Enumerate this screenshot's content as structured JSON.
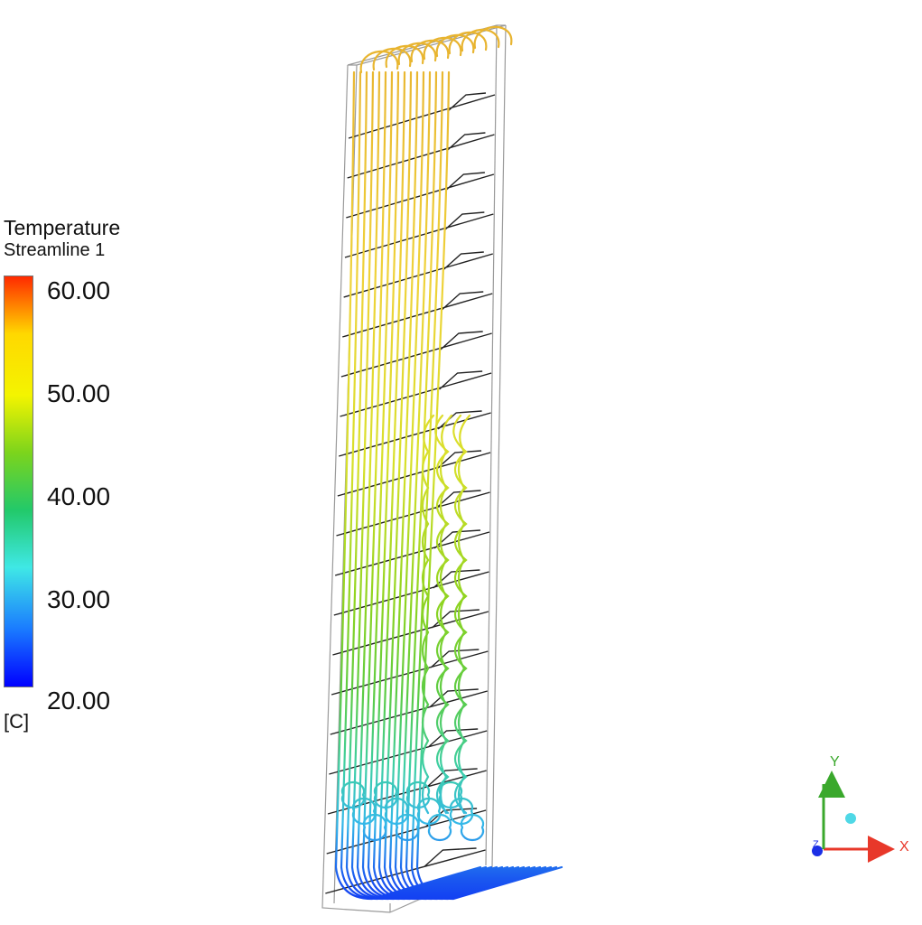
{
  "legend": {
    "title_line1": "Temperature",
    "title_line2": "Streamline 1",
    "unit": "[C]",
    "ticks": [
      "60.00",
      "50.00",
      "40.00",
      "30.00",
      "20.00"
    ],
    "min": 20.0,
    "max": 60.0,
    "colors": [
      "#ff2a00",
      "#ffd800",
      "#f4f400",
      "#7cd41c",
      "#22c96a",
      "#3fe8e6",
      "#1a7bff",
      "#0000ff"
    ]
  },
  "axes": {
    "x_label": "X",
    "y_label": "Y",
    "z_label": "Z",
    "x_color": "#e8382a",
    "y_color": "#3aa82c",
    "z_color": "#1b2fe6"
  }
}
